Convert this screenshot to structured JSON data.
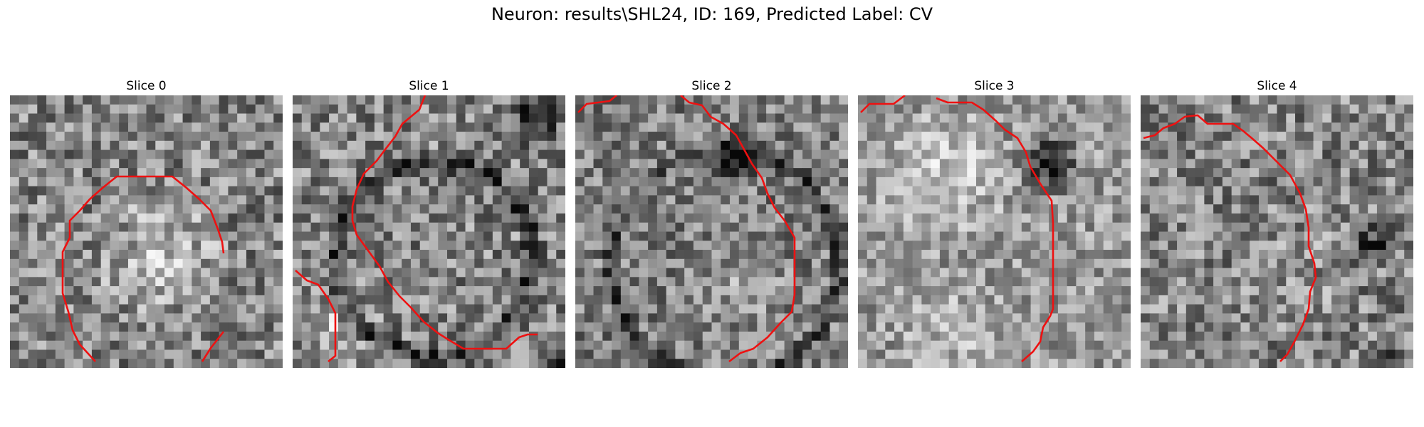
{
  "figure": {
    "title": "Neuron: results\\SHL24, ID: 169, Predicted Label: CV"
  },
  "colors": {
    "contour": "#ee1111"
  },
  "panels": [
    {
      "title": "Slice 0"
    },
    {
      "title": "Slice 1"
    },
    {
      "title": "Slice 2"
    },
    {
      "title": "Slice 3"
    },
    {
      "title": "Slice 4"
    }
  ]
}
